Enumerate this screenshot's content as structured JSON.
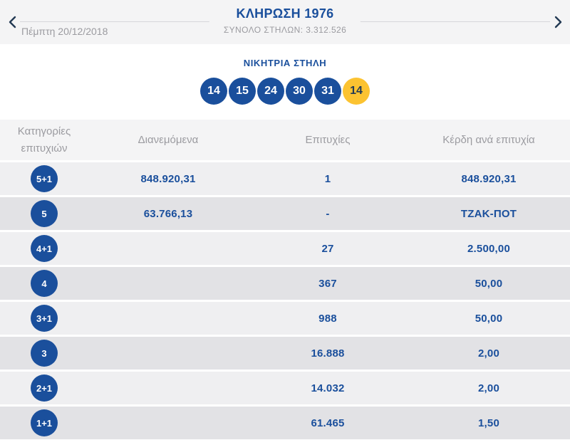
{
  "header": {
    "title": "ΚΛΗΡΩΣΗ 1976",
    "subtitle": "ΣΥΝΟΛΟ ΣΤΗΛΩΝ: 3.312.526",
    "date": "Πέμπτη 20/12/2018"
  },
  "winning": {
    "label": "ΝΙΚΗΤΡΙΑ ΣΤΗΛΗ",
    "numbers": [
      "14",
      "15",
      "24",
      "30",
      "31"
    ],
    "joker": "14"
  },
  "table": {
    "columns": {
      "category_line1": "Κατηγορίες",
      "category_line2": "επιτυχιών",
      "distributed": "Διανεμόμενα",
      "wins": "Επιτυχίες",
      "prize_per_win": "Κέρδη ανά επιτυχία"
    },
    "rows": [
      {
        "category": "5+1",
        "distributed": "848.920,31",
        "wins": "1",
        "prize": "848.920,31"
      },
      {
        "category": "5",
        "distributed": "63.766,13",
        "wins": "-",
        "prize": "ΤΖΑΚ-ΠΟΤ"
      },
      {
        "category": "4+1",
        "distributed": "",
        "wins": "27",
        "prize": "2.500,00"
      },
      {
        "category": "4",
        "distributed": "",
        "wins": "367",
        "prize": "50,00"
      },
      {
        "category": "3+1",
        "distributed": "",
        "wins": "988",
        "prize": "50,00"
      },
      {
        "category": "3",
        "distributed": "",
        "wins": "16.888",
        "prize": "2,00"
      },
      {
        "category": "2+1",
        "distributed": "",
        "wins": "14.032",
        "prize": "2,00"
      },
      {
        "category": "1+1",
        "distributed": "",
        "wins": "61.465",
        "prize": "1,50"
      }
    ]
  },
  "colors": {
    "brand_blue": "#1a4f9c",
    "joker_yellow": "#fcc331",
    "joker_text_navy": "#233a54",
    "muted_gray": "#9b9ba0",
    "band_bg": "#f4f4f5",
    "row_light": "#efeff1",
    "row_dark": "#e2e2e5"
  }
}
